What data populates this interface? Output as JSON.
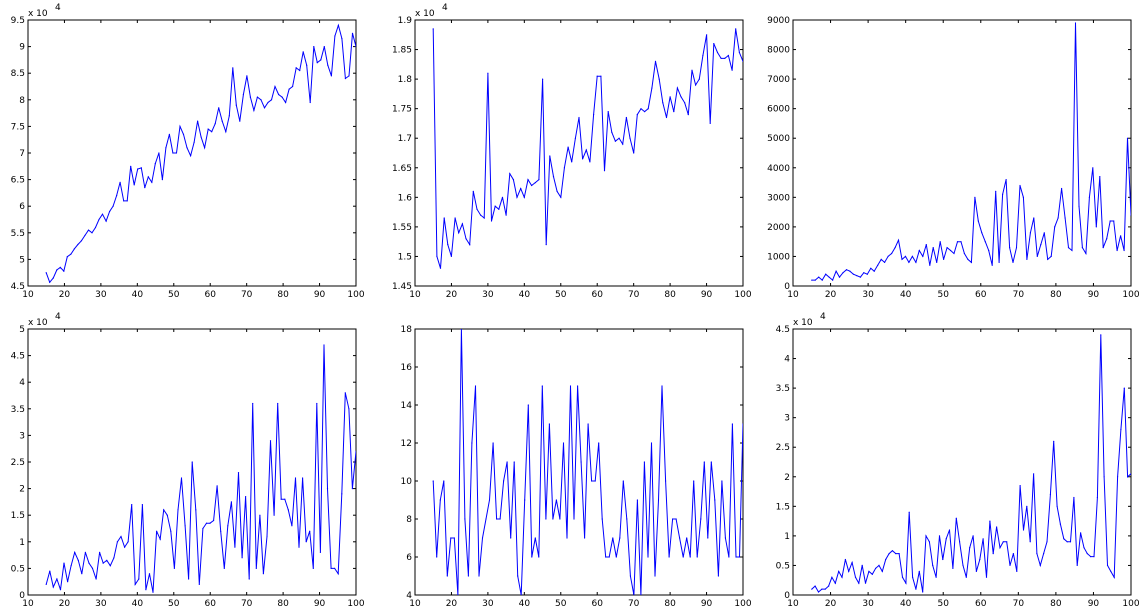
{
  "figure": {
    "background": "#ffffff",
    "line_color": "#0000ff"
  },
  "chart_data": [
    {
      "type": "line",
      "title": "",
      "xlabel": "",
      "ylabel": "",
      "exponent_label": "x 10",
      "exponent": "4",
      "xlim": [
        10,
        100
      ],
      "ylim": [
        4.5,
        9.5
      ],
      "xticks": [
        "10",
        "20",
        "30",
        "40",
        "50",
        "60",
        "70",
        "80",
        "90",
        "100"
      ],
      "yticks": [
        "4.5",
        "5",
        "5.5",
        "6",
        "6.5",
        "7",
        "7.5",
        "8",
        "8.5",
        "9",
        "9.5"
      ],
      "x_start": 15,
      "values": [
        4.75,
        4.57,
        4.65,
        4.8,
        4.85,
        4.78,
        5.05,
        5.1,
        5.2,
        5.28,
        5.35,
        5.45,
        5.55,
        5.5,
        5.6,
        5.75,
        5.85,
        5.72,
        5.9,
        6.0,
        6.2,
        6.45,
        6.1,
        6.1,
        6.75,
        6.4,
        6.7,
        6.72,
        6.35,
        6.55,
        6.45,
        6.8,
        7.0,
        6.5,
        7.1,
        7.35,
        7.0,
        7.0,
        7.5,
        7.35,
        7.1,
        6.95,
        7.2,
        7.6,
        7.3,
        7.1,
        7.45,
        7.4,
        7.55,
        7.85,
        7.6,
        7.4,
        7.7,
        8.6,
        7.9,
        7.6,
        8.1,
        8.45,
        8.05,
        7.8,
        8.05,
        8.0,
        7.85,
        7.95,
        8.0,
        8.25,
        8.1,
        8.05,
        7.95,
        8.2,
        8.25,
        8.6,
        8.55,
        8.9,
        8.65,
        7.95,
        9.0,
        8.7,
        8.75,
        9.0,
        8.65,
        8.45,
        9.2,
        9.4,
        9.15,
        8.4,
        8.45,
        9.25,
        9.0
      ]
    },
    {
      "type": "line",
      "title": "",
      "xlabel": "",
      "ylabel": "",
      "exponent_label": "x 10",
      "exponent": "4",
      "xlim": [
        10,
        100
      ],
      "ylim": [
        1.45,
        1.9
      ],
      "xticks": [
        "10",
        "20",
        "30",
        "40",
        "50",
        "60",
        "70",
        "80",
        "90",
        "100"
      ],
      "yticks": [
        "1.45",
        "1.5",
        "1.55",
        "1.6",
        "1.65",
        "1.7",
        "1.75",
        "1.8",
        "1.85",
        "1.9"
      ],
      "x_start": 15,
      "values": [
        1.885,
        1.5,
        1.48,
        1.565,
        1.52,
        1.5,
        1.565,
        1.54,
        1.555,
        1.53,
        1.52,
        1.61,
        1.58,
        1.57,
        1.565,
        1.81,
        1.56,
        1.585,
        1.58,
        1.6,
        1.57,
        1.64,
        1.63,
        1.6,
        1.615,
        1.6,
        1.63,
        1.62,
        1.625,
        1.63,
        1.8,
        1.52,
        1.67,
        1.635,
        1.61,
        1.6,
        1.65,
        1.685,
        1.66,
        1.7,
        1.735,
        1.665,
        1.68,
        1.66,
        1.74,
        1.805,
        1.805,
        1.645,
        1.745,
        1.71,
        1.695,
        1.7,
        1.69,
        1.735,
        1.7,
        1.675,
        1.74,
        1.75,
        1.745,
        1.75,
        1.785,
        1.83,
        1.8,
        1.76,
        1.735,
        1.77,
        1.745,
        1.785,
        1.77,
        1.76,
        1.74,
        1.815,
        1.79,
        1.8,
        1.84,
        1.875,
        1.725,
        1.86,
        1.845,
        1.835,
        1.835,
        1.84,
        1.815,
        1.885,
        1.845,
        1.83
      ]
    },
    {
      "type": "line",
      "title": "",
      "xlabel": "",
      "ylabel": "",
      "exponent_label": "",
      "exponent": "",
      "xlim": [
        10,
        100
      ],
      "ylim": [
        0,
        9000
      ],
      "xticks": [
        "10",
        "20",
        "30",
        "40",
        "50",
        "60",
        "70",
        "80",
        "90",
        "100"
      ],
      "yticks": [
        "0",
        "1000",
        "2000",
        "3000",
        "4000",
        "5000",
        "6000",
        "7000",
        "8000",
        "9000"
      ],
      "x_start": 15,
      "values": [
        200,
        200,
        300,
        200,
        400,
        300,
        200,
        500,
        300,
        450,
        550,
        500,
        400,
        350,
        300,
        450,
        400,
        600,
        500,
        700,
        900,
        800,
        1000,
        1100,
        1300,
        1550,
        900,
        1000,
        800,
        1000,
        800,
        1200,
        1000,
        1400,
        700,
        1300,
        800,
        1500,
        900,
        1300,
        1200,
        1100,
        1500,
        1500,
        1100,
        900,
        800,
        3000,
        2200,
        1800,
        1500,
        1200,
        700,
        3200,
        800,
        3100,
        3600,
        1300,
        800,
        1300,
        3400,
        3000,
        900,
        1800,
        2300,
        1000,
        1400,
        1800,
        900,
        1000,
        2000,
        2300,
        3300,
        2300,
        1300,
        1200,
        8900,
        2700,
        1300,
        1100,
        3000,
        4000,
        2000,
        3700,
        1300,
        1600,
        2200,
        2200,
        1200,
        1700,
        1200,
        5000,
        2400
      ]
    },
    {
      "type": "line",
      "title": "",
      "xlabel": "",
      "ylabel": "",
      "exponent_label": "x 10",
      "exponent": "4",
      "xlim": [
        10,
        100
      ],
      "ylim": [
        0,
        5
      ],
      "xticks": [
        "10",
        "20",
        "30",
        "40",
        "50",
        "60",
        "70",
        "80",
        "90",
        "100"
      ],
      "yticks": [
        "0",
        "0.5",
        "1",
        "1.5",
        "2",
        "2.5",
        "3",
        "3.5",
        "4",
        "4.5",
        "5"
      ],
      "x_start": 15,
      "values": [
        0.2,
        0.45,
        0.15,
        0.3,
        0.1,
        0.6,
        0.25,
        0.55,
        0.8,
        0.65,
        0.4,
        0.8,
        0.6,
        0.5,
        0.3,
        0.8,
        0.6,
        0.65,
        0.55,
        0.7,
        1.0,
        1.1,
        0.9,
        1.0,
        1.7,
        0.2,
        0.3,
        1.7,
        0.1,
        0.4,
        0.05,
        1.2,
        1.05,
        1.6,
        1.5,
        1.2,
        0.5,
        1.6,
        2.2,
        1.3,
        0.3,
        2.5,
        1.6,
        0.2,
        1.25,
        1.35,
        1.35,
        1.4,
        2.05,
        1.2,
        0.5,
        1.3,
        1.75,
        0.9,
        2.3,
        0.7,
        1.85,
        0.3,
        3.6,
        0.5,
        1.5,
        0.4,
        1.1,
        2.9,
        1.5,
        3.6,
        1.8,
        1.8,
        1.6,
        1.3,
        2.2,
        0.9,
        2.2,
        1.0,
        1.2,
        0.5,
        3.6,
        0.8,
        4.7,
        2.0,
        0.5,
        0.5,
        0.4,
        1.9,
        3.8,
        3.5,
        2.0,
        2.7
      ]
    },
    {
      "type": "line",
      "title": "",
      "xlabel": "",
      "ylabel": "",
      "exponent_label": "",
      "exponent": "",
      "xlim": [
        10,
        100
      ],
      "ylim": [
        4,
        18
      ],
      "xticks": [
        "10",
        "20",
        "30",
        "40",
        "50",
        "60",
        "70",
        "80",
        "90",
        "100"
      ],
      "yticks": [
        "4",
        "6",
        "8",
        "10",
        "12",
        "14",
        "16",
        "18"
      ],
      "x_start": 15,
      "values": [
        10,
        6,
        9,
        10,
        5,
        7,
        7,
        4,
        18,
        8,
        5,
        12,
        15,
        5,
        7,
        8,
        9,
        12,
        8,
        8,
        10,
        11,
        7,
        11,
        5,
        4,
        9,
        14,
        6,
        7,
        6,
        15,
        8,
        13,
        8,
        9,
        8,
        12,
        7,
        15,
        8,
        15,
        11,
        7,
        13,
        10,
        10,
        12,
        8,
        6,
        6,
        7,
        6,
        7,
        10,
        8,
        5,
        4,
        9,
        4,
        11,
        6,
        12,
        5,
        9,
        15,
        10,
        6,
        8,
        8,
        7,
        6,
        7,
        6,
        10,
        6,
        8,
        11,
        7,
        11,
        9,
        5,
        10,
        7,
        6,
        13,
        6,
        6,
        13
      ]
    },
    {
      "type": "line",
      "title": "",
      "xlabel": "",
      "ylabel": "",
      "exponent_label": "x 10",
      "exponent": "4",
      "xlim": [
        10,
        100
      ],
      "ylim": [
        0,
        4.5
      ],
      "xticks": [
        "10",
        "20",
        "30",
        "40",
        "50",
        "60",
        "70",
        "80",
        "90",
        "100"
      ],
      "yticks": [
        "0",
        "0.5",
        "1",
        "1.5",
        "2",
        "2.5",
        "3",
        "3.5",
        "4",
        "4.5"
      ],
      "x_start": 15,
      "values": [
        0.1,
        0.15,
        0.05,
        0.1,
        0.1,
        0.15,
        0.3,
        0.2,
        0.4,
        0.3,
        0.6,
        0.4,
        0.55,
        0.3,
        0.2,
        0.5,
        0.2,
        0.4,
        0.35,
        0.45,
        0.5,
        0.4,
        0.6,
        0.7,
        0.75,
        0.7,
        0.7,
        0.3,
        0.2,
        1.4,
        0.3,
        0.1,
        0.4,
        0.05,
        1.0,
        0.9,
        0.5,
        0.3,
        1.0,
        0.6,
        0.95,
        1.1,
        0.45,
        1.3,
        0.9,
        0.5,
        0.3,
        0.8,
        1.0,
        0.4,
        0.6,
        0.95,
        0.3,
        1.25,
        0.7,
        1.15,
        0.8,
        0.9,
        0.9,
        0.5,
        0.7,
        0.4,
        1.85,
        1.1,
        1.5,
        0.9,
        2.05,
        0.7,
        0.5,
        0.7,
        0.9,
        1.7,
        2.6,
        1.5,
        1.2,
        0.95,
        0.9,
        0.9,
        1.65,
        0.5,
        1.05,
        0.8,
        0.7,
        0.65,
        0.65,
        1.65,
        4.4,
        2.0,
        0.5,
        0.4,
        0.3,
        2.0,
        2.8,
        3.5,
        2.0,
        2.05
      ]
    }
  ]
}
